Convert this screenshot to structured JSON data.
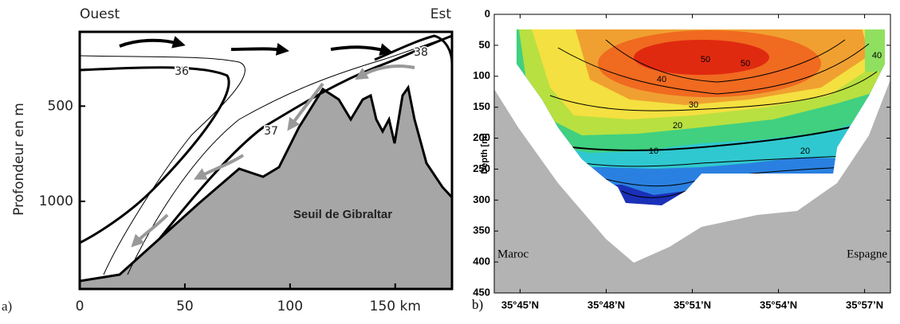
{
  "chart_data": [
    {
      "type": "schematic",
      "panel_label": "a)",
      "y_label": "Profondeur en m",
      "xlim": [
        0,
        177
      ],
      "ylim": [
        110,
        1460
      ],
      "xticks": [
        0,
        50,
        100,
        {
          "value": 150,
          "label": "150 km"
        }
      ],
      "yticks": [
        500,
        1000
      ],
      "annotations": [
        "Ouest",
        "Est",
        "36",
        "37",
        "38",
        "Seuil de Gibraltar"
      ]
    },
    {
      "type": "contour",
      "panel_label": "b)",
      "y_label": "Depth [m]",
      "xlim": [
        44.1,
        57.9
      ],
      "ylim": [
        0,
        450
      ],
      "xticks": [
        {
          "value": 45,
          "label": "35°45’N"
        },
        {
          "value": 48,
          "label": "35°48’N"
        },
        {
          "value": 51,
          "label": "35°51’N"
        },
        {
          "value": 54,
          "label": "35°54’N"
        },
        {
          "value": 57,
          "label": "35°57’N"
        }
      ],
      "yticks": [
        0,
        50,
        100,
        150,
        200,
        250,
        300,
        350,
        400,
        450
      ],
      "annotations": [
        "Maroc",
        "Espagne"
      ],
      "contour_labels": [
        "50",
        "40",
        "30",
        "20",
        "10",
        "50",
        "40",
        "20"
      ]
    }
  ]
}
